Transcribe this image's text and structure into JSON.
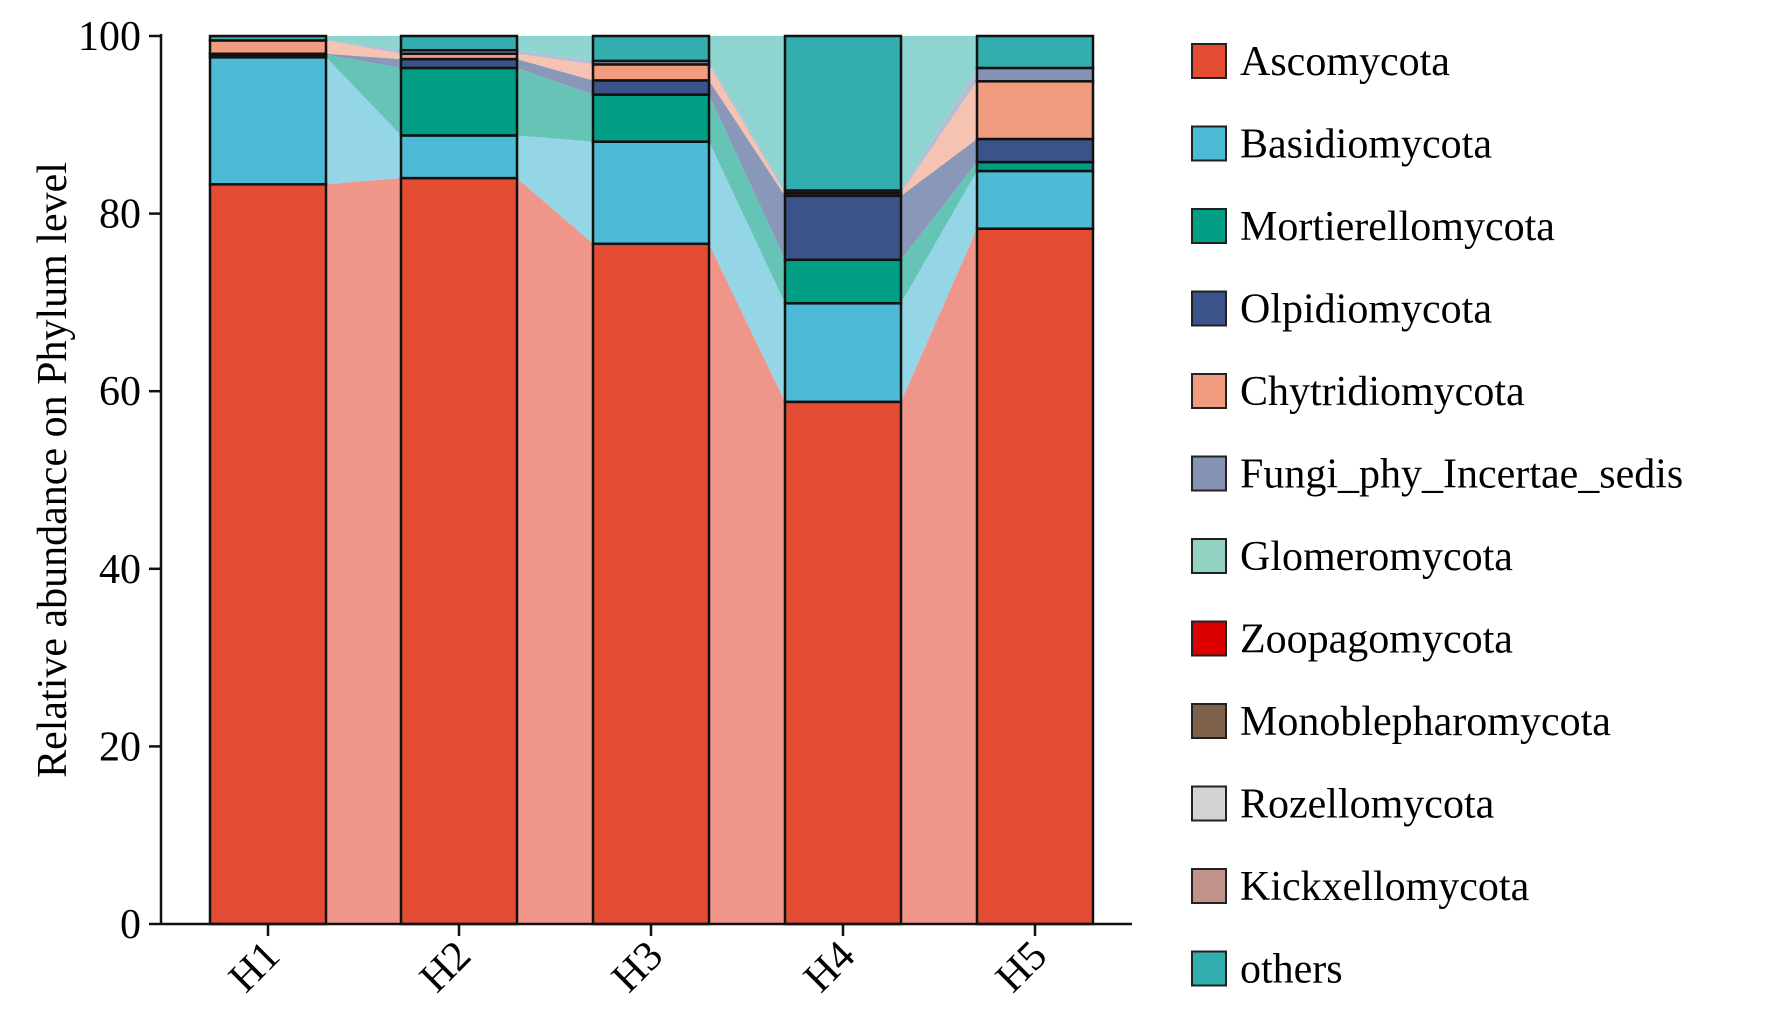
{
  "chart_data": {
    "type": "bar",
    "stacked": true,
    "normalized": true,
    "connector_bands": true,
    "title": "",
    "xlabel": "",
    "ylabel": "Relative abundance on Phylum level",
    "ylim": [
      0,
      100
    ],
    "yticks": [
      0,
      20,
      40,
      60,
      80,
      100
    ],
    "categories": [
      "H1",
      "H2",
      "H3",
      "H4",
      "H5"
    ],
    "legend_position": "right",
    "series": [
      {
        "name": "Ascomycota",
        "color": "#e44c34",
        "band_color": "#f0958a",
        "values": [
          83.3,
          84.0,
          76.6,
          58.8,
          78.3
        ]
      },
      {
        "name": "Basidiomycota",
        "color": "#4dbad6",
        "band_color": "#94d5e6",
        "values": [
          14.3,
          4.8,
          11.5,
          11.1,
          6.5
        ]
      },
      {
        "name": "Mortierellomycota",
        "color": "#009e85",
        "band_color": "#66c4b6",
        "values": [
          0.3,
          7.6,
          5.3,
          4.9,
          1.0
        ]
      },
      {
        "name": "Olpidiomycota",
        "color": "#3b5388",
        "band_color": "#8997b8",
        "values": [
          0.1,
          1.0,
          1.6,
          7.2,
          2.6
        ]
      },
      {
        "name": "Chytridiomycota",
        "color": "#f19b7f",
        "band_color": "#f6c3b2",
        "values": [
          1.5,
          0.6,
          1.8,
          0.3,
          6.5
        ]
      },
      {
        "name": "Fungi_phy_Incertae_sedis",
        "color": "#8592b5",
        "band_color": "#b6bed3",
        "values": [
          0.0,
          0.4,
          0.4,
          0.3,
          1.5
        ]
      },
      {
        "name": "Glomeromycota",
        "color": "#91d2c2",
        "band_color": "#bde4da",
        "values": [
          0.0,
          0.0,
          0.0,
          0.0,
          0.0
        ]
      },
      {
        "name": "Zoopagomycota",
        "color": "#dc0000",
        "band_color": "#ea6666",
        "values": [
          0.0,
          0.0,
          0.0,
          0.0,
          0.0
        ]
      },
      {
        "name": "Monoblepharomycota",
        "color": "#7e6148",
        "band_color": "#b2a091",
        "values": [
          0.0,
          0.0,
          0.0,
          0.0,
          0.0
        ]
      },
      {
        "name": "Rozellomycota",
        "color": "#d3d3d3",
        "band_color": "#e5e5e5",
        "values": [
          0.0,
          0.0,
          0.0,
          0.0,
          0.0
        ]
      },
      {
        "name": "Kickxellomycota",
        "color": "#c1928a",
        "band_color": "#dabeb9",
        "values": [
          0.0,
          0.0,
          0.0,
          0.0,
          0.0
        ]
      },
      {
        "name": "others",
        "color": "#33aeae",
        "band_color": "#8ed4d0",
        "values": [
          0.5,
          1.6,
          2.8,
          17.4,
          3.6
        ]
      }
    ]
  }
}
